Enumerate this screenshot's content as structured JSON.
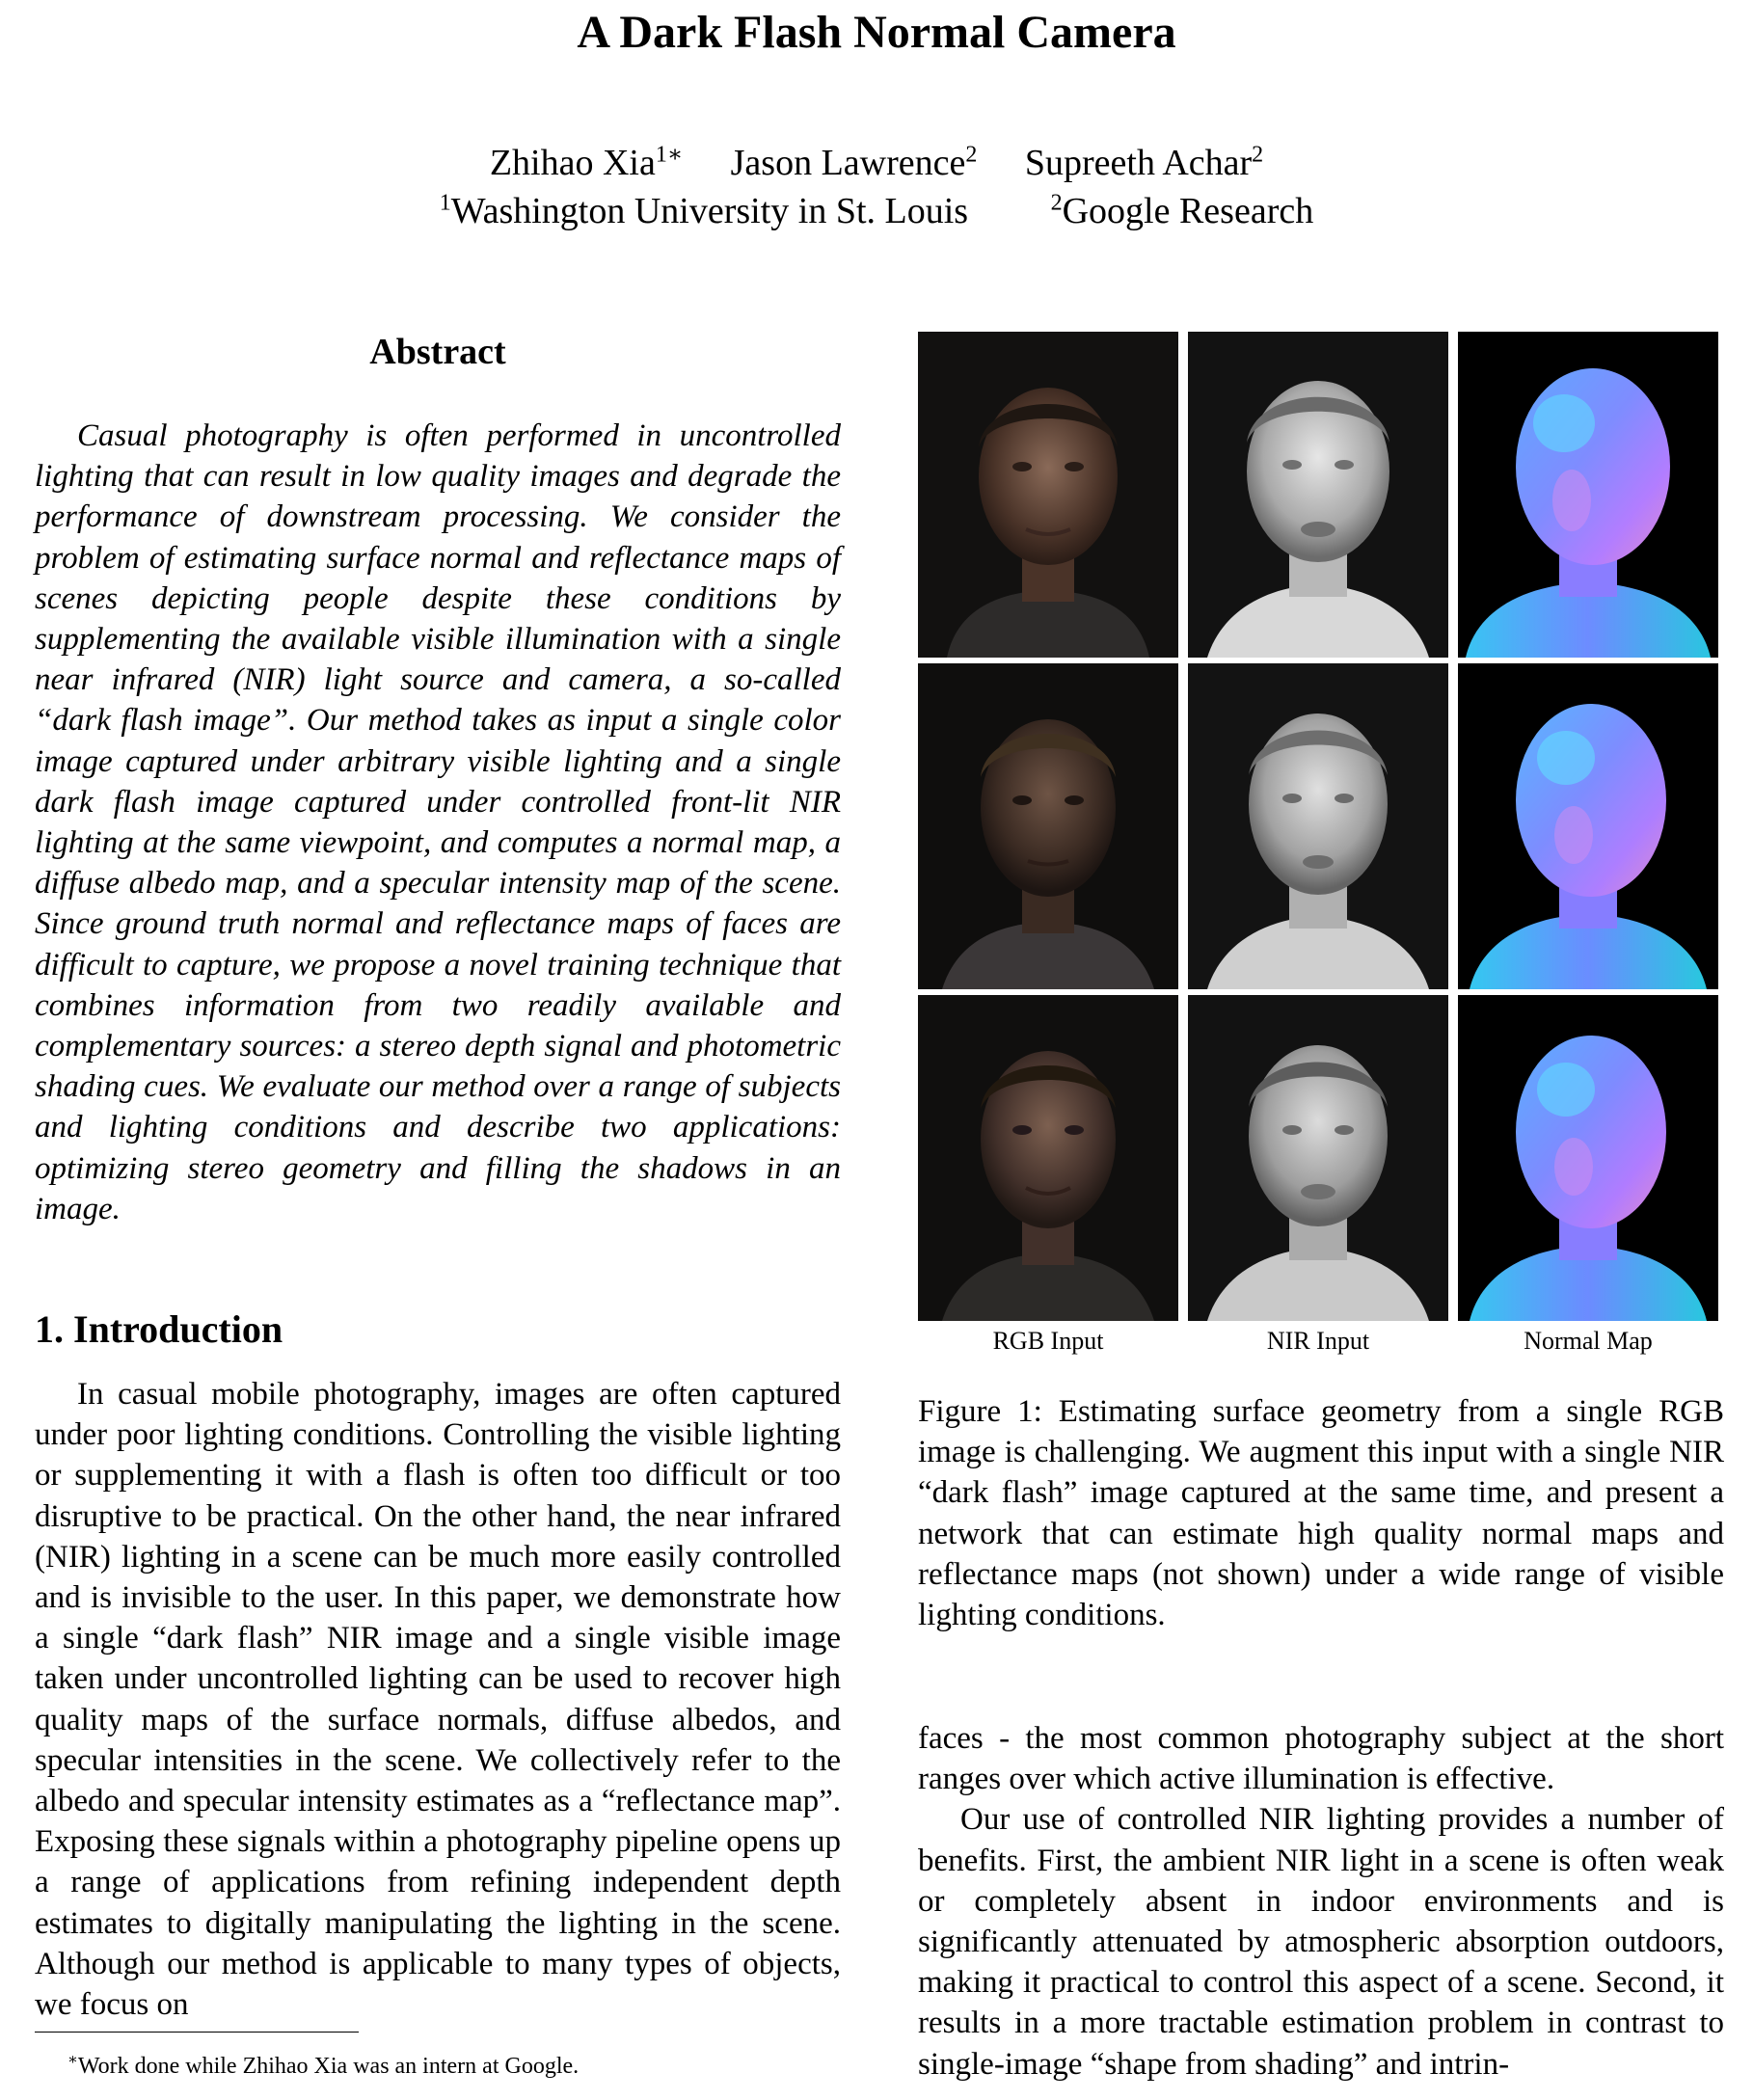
{
  "title": "A Dark Flash Normal Camera",
  "authors": [
    {
      "name": "Zhihao Xia",
      "sup": "1∗"
    },
    {
      "name": "Jason Lawrence",
      "sup": "2"
    },
    {
      "name": "Supreeth Achar",
      "sup": "2"
    }
  ],
  "affiliations": [
    {
      "sup": "1",
      "name": "Washington University in St. Louis"
    },
    {
      "sup": "2",
      "name": "Google Research"
    }
  ],
  "abstract": {
    "heading": "Abstract",
    "text": "Casual photography is often performed in uncontrolled lighting that can result in low quality images and degrade the performance of downstream processing. We consider the problem of estimating surface normal and reflectance maps of scenes depicting people despite these conditions by supplementing the available visible illumination with a single near infrared (NIR) light source and camera, a so-called “dark flash image”. Our method takes as input a single color image captured under arbitrary visible lighting and a single dark flash image captured under controlled front-lit NIR lighting at the same viewpoint, and computes a normal map, a diffuse albedo map, and a specular intensity map of the scene. Since ground truth normal and reflectance maps of faces are difficult to capture, we propose a novel training technique that combines information from two readily available and complementary sources: a stereo depth signal and photometric shading cues. We evaluate our method over a range of subjects and lighting conditions and describe two applications: optimizing stereo geometry and filling the shadows in an image."
  },
  "introduction": {
    "heading": "1. Introduction",
    "text": "In casual mobile photography, images are often captured under poor lighting conditions. Controlling the visible lighting or supplementing it with a flash is often too difficult or too disruptive to be practical. On the other hand, the near infrared (NIR) lighting in a scene can be much more easily controlled and is invisible to the user. In this paper, we demonstrate how a single “dark flash” NIR image and a single visible image taken under uncontrolled lighting can be used to recover high quality maps of the surface normals, diffuse albedos, and specular intensities in the scene. We collectively refer to the albedo and specular intensity estimates as a “reflectance map”. Exposing these signals within a photography pipeline opens up a range of applications from refining independent depth estimates to digitally manipulating the lighting in the scene. Although our method is applicable to many types of objects, we focus on"
  },
  "footnote": {
    "mark": "∗",
    "text": "Work done while Zhihao Xia was an intern at Google."
  },
  "figure": {
    "column_labels": [
      "RGB Input",
      "NIR Input",
      "Normal Map"
    ],
    "caption": "Figure 1: Estimating surface geometry from a single RGB image is challenging. We augment this input with a single NIR “dark flash” image captured at the same time, and present a network that can estimate high quality normal maps and reflectance maps (not shown) under a wide range of visible lighting conditions."
  },
  "right_column": {
    "continuation": "faces - the most common photography subject at the short ranges over which active illumination is effective.",
    "paragraph2": "Our use of controlled NIR lighting provides a number of benefits. First, the ambient NIR light in a scene is often weak or completely absent in indoor environments and is significantly attenuated by atmospheric absorption outdoors, making it practical to control this aspect of a scene. Second, it results in a more tractable estimation problem in contrast to single-image “shape from shading” and intrin-"
  }
}
